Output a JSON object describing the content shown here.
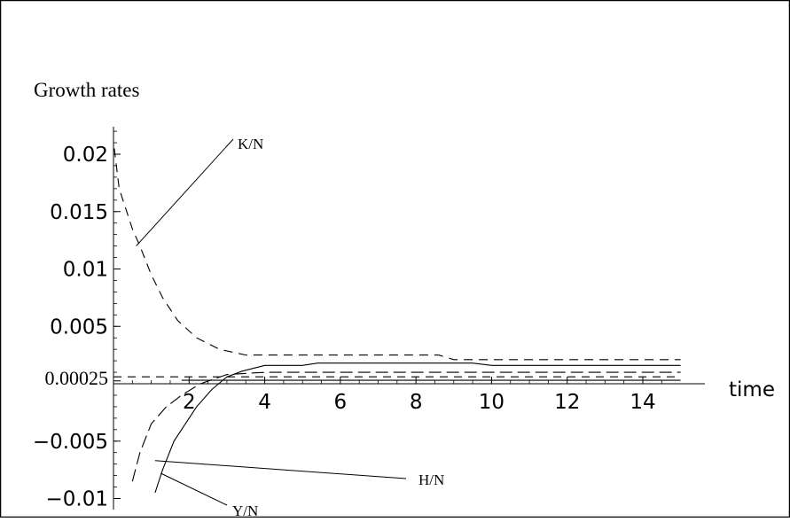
{
  "chart_data": {
    "type": "line",
    "title": "",
    "ylabel": "Growth rates",
    "xlabel": "time",
    "xlim": [
      0,
      15
    ],
    "ylim": [
      -0.01,
      0.02
    ],
    "grid": false,
    "x_ticks": [
      {
        "value": 2,
        "label": "2"
      },
      {
        "value": 4,
        "label": "4"
      },
      {
        "value": 6,
        "label": "6"
      },
      {
        "value": 8,
        "label": "8"
      },
      {
        "value": 10,
        "label": "10"
      },
      {
        "value": 12,
        "label": "12"
      },
      {
        "value": 14,
        "label": "14"
      }
    ],
    "y_ticks": [
      {
        "value": 0.02,
        "label": "0.02"
      },
      {
        "value": 0.015,
        "label": "0.015"
      },
      {
        "value": 0.01,
        "label": "0.01"
      },
      {
        "value": 0.005,
        "label": "0.005"
      },
      {
        "value": 0.00025,
        "label": "0.00025"
      },
      {
        "value": -0.005,
        "label": "−0.005"
      },
      {
        "value": -0.01,
        "label": "−0.01"
      }
    ],
    "series": [
      {
        "name": "K/N",
        "dash": "10,7",
        "points": [
          [
            0.02,
            0.0205
          ],
          [
            0.15,
            0.017
          ],
          [
            0.3,
            0.0155
          ],
          [
            0.5,
            0.0135
          ],
          [
            0.7,
            0.012
          ],
          [
            1.0,
            0.0095
          ],
          [
            1.3,
            0.0075
          ],
          [
            1.7,
            0.0055
          ],
          [
            2.2,
            0.004
          ],
          [
            2.8,
            0.003
          ],
          [
            3.5,
            0.0025
          ],
          [
            5,
            0.0025
          ],
          [
            8,
            0.0025
          ],
          [
            8.6,
            0.0025
          ],
          [
            9.0,
            0.0021
          ],
          [
            15,
            0.0021
          ]
        ]
      },
      {
        "name": "Y/N",
        "dash": "",
        "points": [
          [
            1.1,
            -0.0095
          ],
          [
            1.3,
            -0.0075
          ],
          [
            1.6,
            -0.005
          ],
          [
            1.9,
            -0.0035
          ],
          [
            2.2,
            -0.002
          ],
          [
            2.6,
            -0.0005
          ],
          [
            3.0,
            0.0006
          ],
          [
            3.4,
            0.0011
          ],
          [
            4.0,
            0.0016
          ],
          [
            5.0,
            0.0016
          ],
          [
            5.4,
            0.0018
          ],
          [
            9.5,
            0.0018
          ],
          [
            10.0,
            0.0016
          ],
          [
            15,
            0.0016
          ]
        ]
      },
      {
        "name": "H/N",
        "dash": "14,6",
        "points": [
          [
            0.5,
            -0.0085
          ],
          [
            0.7,
            -0.006
          ],
          [
            1.0,
            -0.0035
          ],
          [
            1.4,
            -0.002
          ],
          [
            1.8,
            -0.001
          ],
          [
            2.3,
            0.0
          ],
          [
            3.0,
            0.0008
          ],
          [
            4.0,
            0.001
          ],
          [
            15,
            0.001
          ]
        ]
      },
      {
        "name": "",
        "dash": "9,7",
        "points": [
          [
            0,
            0.0006
          ],
          [
            15,
            0.0006
          ]
        ]
      },
      {
        "name": "",
        "dash": "",
        "points": [
          [
            1.8,
            0.0003
          ],
          [
            15,
            0.0003
          ]
        ]
      }
    ],
    "annotations": [
      {
        "text": "K/N",
        "series": "K/N",
        "x": 0.6,
        "y": 0.012
      },
      {
        "text": "H/N",
        "series": "H/N",
        "x": 1.1,
        "y": -0.0067
      },
      {
        "text": "Y/N",
        "series": "Y/N",
        "x": 1.25,
        "y": -0.0078
      }
    ]
  }
}
